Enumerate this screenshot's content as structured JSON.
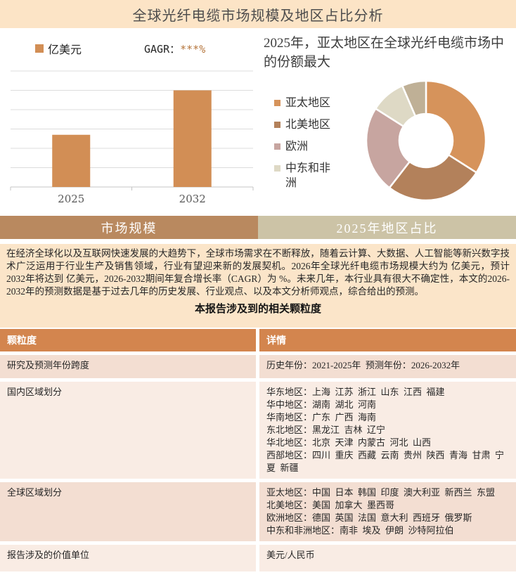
{
  "page": {
    "title": "全球光纤电缆市场规模及地区占比分析"
  },
  "bar_panel": {
    "legend_label": "亿美元",
    "cagr_label": "GAGR：",
    "cagr_value": "***%"
  },
  "donut_panel": {
    "heading": "2025年，亚太地区在全球光纤电缆市场中的份额最大"
  },
  "tabs": [
    {
      "label": "市场规模"
    },
    {
      "label": "2025年地区占比"
    }
  ],
  "intro": {
    "paragraph": "在经济全球化以及互联网快速发展的大趋势下，全球市场需求在不断释放，随着云计算、大数据、人工智能等新兴数字技术广泛运用于行业生产及销售领域，行业有望迎来新的发展契机。2026年全球光纤电缆市场规模大约为 亿美元，预计2032年将达到 亿美元，2026-2032期间年复合增长率（CAGR）为 %。未来几年，本行业具有很大不确定性，本文的2026-2032年的预测数据是基于过去几年的历史发展、行业观点、以及本文分析师观点，综合给出的预测。",
    "table_title": "本报告涉及到的相关颗粒度"
  },
  "table": {
    "columns": [
      "颗粒度",
      "详情"
    ],
    "rows": [
      {
        "label": "研究及预测年份跨度",
        "detail": [
          "历史年份：2021-2025年  预测年份：2026-2032年"
        ]
      },
      {
        "label": "国内区域划分",
        "detail": [
          "华东地区：上海  江苏  浙江  山东  江西  福建",
          "华中地区：湖南  湖北  河南",
          "华南地区：广东  广西  海南",
          "东北地区：黑龙江  吉林  辽宁",
          "华北地区：北京  天津  内蒙古  河北  山西",
          "西部地区：四川  重庆  西藏  云南  贵州  陕西  青海  甘肃  宁夏  新疆"
        ]
      },
      {
        "label": "全球区域划分",
        "detail": [
          "亚太地区：中国  日本  韩国  印度  澳大利亚  新西兰  东盟",
          "北美地区：美国  加拿大  墨西哥",
          "欧洲地区：德国  英国  法国  意大利  西班牙  俄罗斯",
          "中东和非洲地区：南非  埃及  伊朗  沙特阿拉伯"
        ]
      },
      {
        "label": "报告涉及的价值单位",
        "detail": [
          "美元/人民币"
        ]
      }
    ]
  },
  "colors": {
    "title_bar_bg": "#fce4c6",
    "bar_fill": "#d28e55",
    "cagr_stars": "#b5763d",
    "gridline": "#dcdcdc",
    "axis": "#c4c4c4",
    "tab_left_bg": "#b9895f",
    "tab_right_bg": "#ccc3a6",
    "intro_bg": "#fbe5c9",
    "table_header_bg": "#d3854e",
    "row_odd_bg": "#f3ded2",
    "row_even_bg": "#f9ece4"
  },
  "chart_data": [
    {
      "type": "bar",
      "categories": [
        "2025",
        "2032"
      ],
      "values": [
        2.7,
        5
      ],
      "ylim": [
        0,
        6
      ],
      "gridline_step": 1,
      "unit": "亿美元",
      "value_labels_visible": false,
      "y_axis_labels_visible": false,
      "legend": [
        "亿美元"
      ],
      "annotation": "GAGR：***%",
      "bar_color": "#d28e55"
    },
    {
      "type": "pie",
      "donut": true,
      "title": "2025年，亚太地区在全球光纤电缆市场中的份额最大",
      "labels": [
        "亚太地区",
        "北美地区",
        "欧洲",
        "中东和非洲",
        ""
      ],
      "values": [
        34,
        26.5,
        23.5,
        9.5,
        6.5
      ],
      "colors": [
        "#d6935b",
        "#b3815b",
        "#c7a5a0",
        "#ded9c5",
        "#bfb096"
      ],
      "legend_position": "left",
      "start_angle_deg": 0,
      "clockwise": true
    }
  ]
}
